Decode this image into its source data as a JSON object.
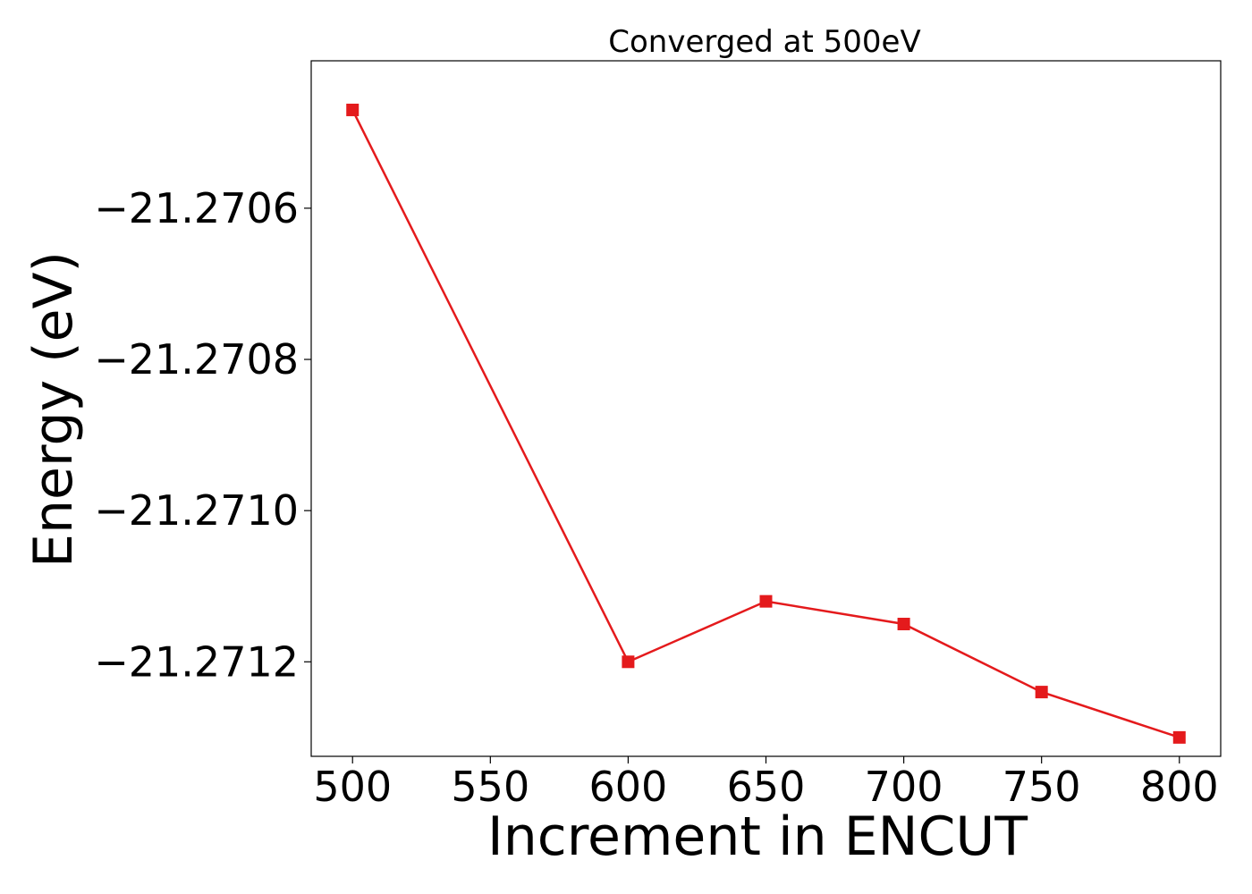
{
  "chart_data": {
    "type": "line",
    "title": "Converged at 500eV",
    "xlabel": "Increment in ENCUT",
    "ylabel": "Energy (eV)",
    "x": [
      500,
      600,
      650,
      700,
      750,
      800
    ],
    "series": [
      {
        "values": [
          -21.27047,
          -21.2712,
          -21.27112,
          -21.27115,
          -21.27124,
          -21.2713
        ],
        "color": "#e41a1c",
        "marker": "square"
      }
    ],
    "xlim": [
      485,
      815
    ],
    "ylim": [
      -21.271325,
      -21.270405
    ],
    "xticks": [
      500,
      550,
      600,
      650,
      700,
      750,
      800
    ],
    "xtick_labels": [
      "500",
      "550",
      "600",
      "650",
      "700",
      "750",
      "800"
    ],
    "yticks": [
      -21.2706,
      -21.2708,
      -21.271,
      -21.2712
    ],
    "ytick_labels": [
      "−21.2706",
      "−21.2708",
      "−21.2710",
      "−21.2712"
    ],
    "grid": false,
    "legend": "none"
  }
}
